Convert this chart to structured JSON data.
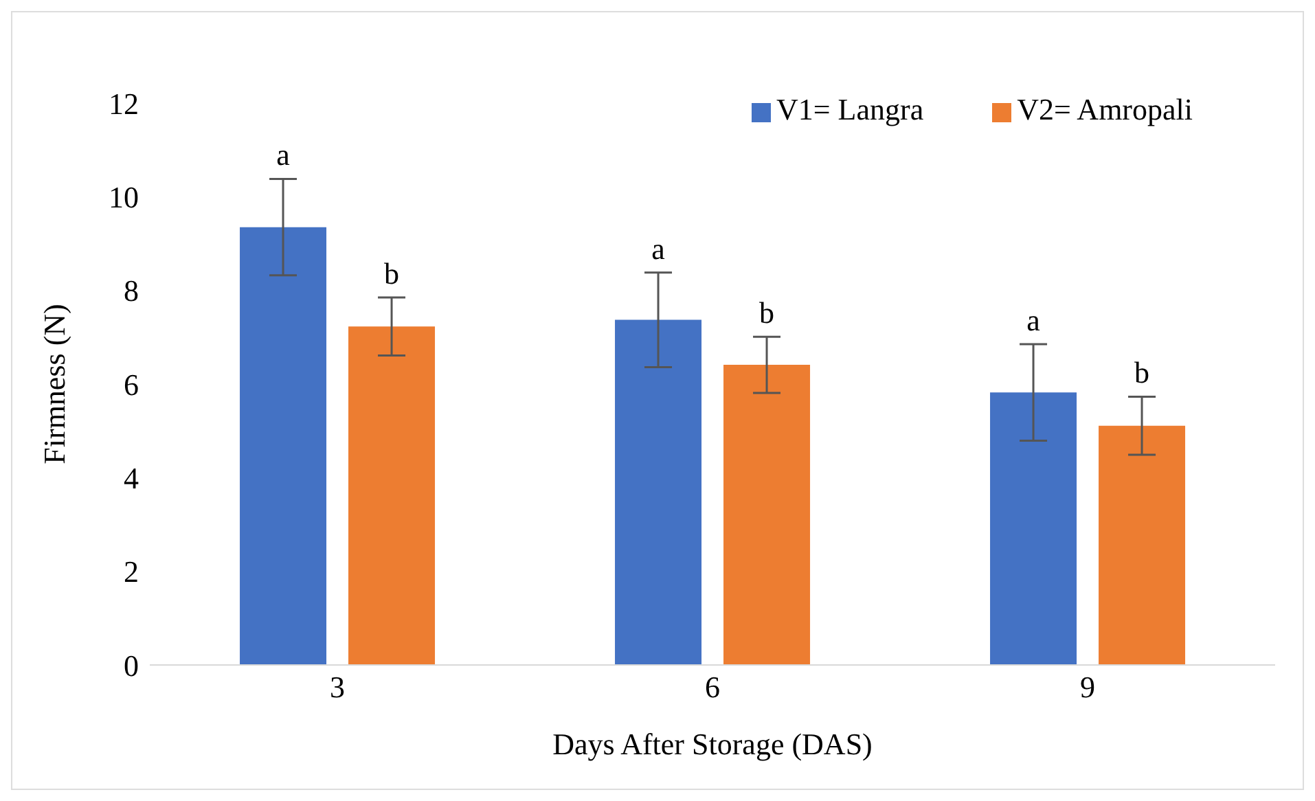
{
  "chart_data": {
    "type": "bar",
    "xlabel": "Days After Storage (DAS)",
    "ylabel": "Firmness (N)",
    "categories": [
      "3",
      "6",
      "9"
    ],
    "series": [
      {
        "name": "V1= Langra",
        "color": "#4472c4",
        "values": [
          9.35,
          7.37,
          5.82
        ],
        "errors": [
          1.03,
          1.01,
          1.03
        ]
      },
      {
        "name": "V2= Amropali",
        "color": "#ed7d31",
        "values": [
          7.23,
          6.41,
          5.11
        ],
        "errors": [
          0.62,
          0.6,
          0.62
        ]
      }
    ],
    "ylim": [
      0,
      12
    ],
    "yticks": [
      0,
      2,
      4,
      6,
      8,
      10,
      12
    ],
    "grid": false,
    "legend": "top right",
    "annotations": [
      "a",
      "b",
      "a",
      "b",
      "a",
      "b"
    ]
  }
}
